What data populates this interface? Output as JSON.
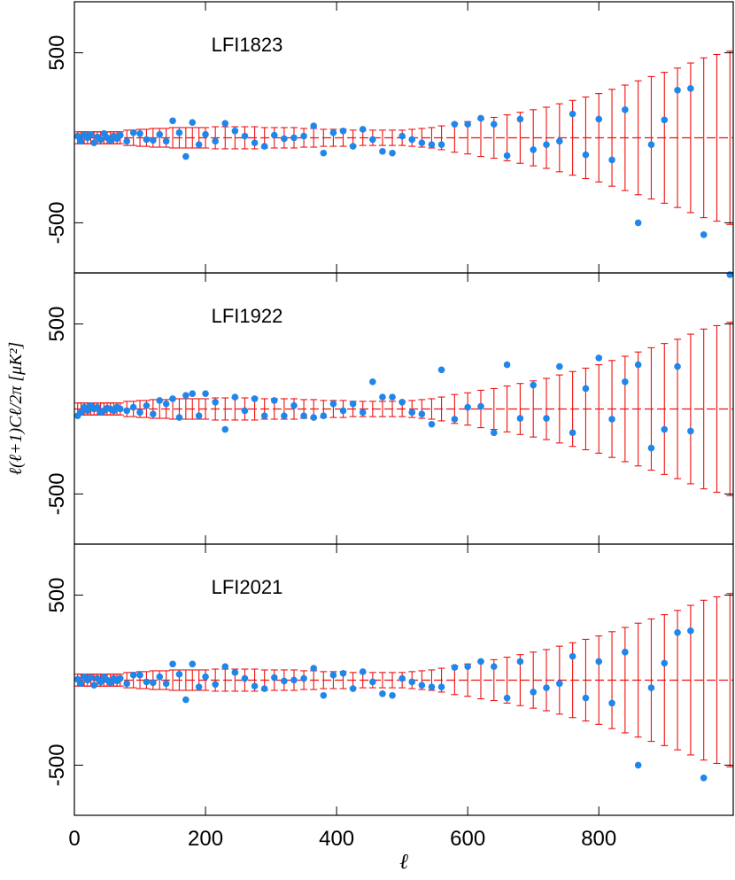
{
  "chart_data": [
    {
      "type": "scatter",
      "label": "LFI1823",
      "xlim": [
        0,
        1005
      ],
      "ylim": [
        -795,
        800
      ],
      "yticks": [
        500,
        -500
      ],
      "color": "#1f86ea",
      "error_color": "#ee1111",
      "x": [
        5,
        10,
        15,
        20,
        25,
        30,
        35,
        40,
        45,
        50,
        55,
        60,
        65,
        70,
        80,
        90,
        100,
        110,
        120,
        130,
        140,
        150,
        160,
        170,
        180,
        190,
        200,
        215,
        230,
        245,
        260,
        275,
        290,
        305,
        320,
        335,
        350,
        365,
        380,
        395,
        410,
        425,
        440,
        455,
        470,
        485,
        500,
        515,
        530,
        545,
        560,
        580,
        600,
        620,
        640,
        660,
        680,
        700,
        720,
        740,
        760,
        780,
        800,
        820,
        840,
        860,
        880,
        900,
        920,
        940,
        960,
        980,
        1000
      ],
      "values": [
        10,
        -20,
        15,
        0,
        20,
        -30,
        5,
        -10,
        25,
        0,
        -15,
        10,
        -5,
        15,
        -20,
        30,
        25,
        -10,
        -15,
        20,
        -20,
        100,
        30,
        -110,
        90,
        -40,
        20,
        -20,
        85,
        40,
        10,
        -30,
        -50,
        15,
        -5,
        0,
        10,
        70,
        -90,
        30,
        40,
        -50,
        50,
        -10,
        -80,
        -90,
        10,
        -10,
        -30,
        -40,
        -40,
        80,
        80,
        115,
        80,
        -105,
        110,
        -70,
        -40,
        -20,
        140,
        -100,
        110,
        -130,
        165,
        -500,
        -40,
        105,
        280,
        290,
        -570,
        null,
        null
      ],
      "errors": [
        35,
        35,
        35,
        35,
        35,
        35,
        35,
        35,
        35,
        35,
        35,
        35,
        35,
        35,
        45,
        45,
        50,
        50,
        55,
        55,
        55,
        60,
        60,
        60,
        60,
        60,
        60,
        65,
        65,
        65,
        65,
        65,
        60,
        60,
        60,
        60,
        55,
        55,
        50,
        50,
        50,
        45,
        45,
        45,
        45,
        45,
        45,
        50,
        55,
        60,
        70,
        85,
        95,
        110,
        120,
        135,
        150,
        165,
        180,
        200,
        220,
        240,
        260,
        285,
        310,
        335,
        360,
        385,
        410,
        440,
        470,
        490,
        510
      ]
    },
    {
      "type": "scatter",
      "label": "LFI1922",
      "ylabel": "ℓ(ℓ+1)Cℓ/2π   [μK²]",
      "xlim": [
        0,
        1005
      ],
      "ylim": [
        -795,
        800
      ],
      "yticks": [
        500,
        -500
      ],
      "color": "#1f86ea",
      "error_color": "#ee1111",
      "x": [
        5,
        10,
        15,
        20,
        25,
        30,
        35,
        40,
        45,
        50,
        55,
        60,
        65,
        70,
        80,
        90,
        100,
        110,
        120,
        130,
        140,
        150,
        160,
        170,
        180,
        190,
        200,
        215,
        230,
        245,
        260,
        275,
        290,
        305,
        320,
        335,
        350,
        365,
        380,
        395,
        410,
        425,
        440,
        455,
        470,
        485,
        500,
        515,
        530,
        545,
        560,
        580,
        600,
        620,
        640,
        660,
        680,
        700,
        720,
        740,
        760,
        780,
        800,
        820,
        840,
        860,
        880,
        900,
        920,
        940,
        960,
        980,
        1000
      ],
      "values": [
        -40,
        -20,
        10,
        -10,
        20,
        0,
        10,
        -20,
        -10,
        5,
        0,
        -10,
        10,
        0,
        -10,
        10,
        -20,
        20,
        -30,
        50,
        30,
        60,
        -50,
        80,
        90,
        -40,
        90,
        40,
        -120,
        70,
        -10,
        60,
        -40,
        50,
        -40,
        20,
        -40,
        -50,
        -40,
        30,
        -10,
        30,
        -20,
        160,
        70,
        70,
        40,
        -20,
        -30,
        -90,
        230,
        -60,
        10,
        15,
        -140,
        260,
        -55,
        140,
        -55,
        250,
        -140,
        120,
        300,
        -60,
        160,
        260,
        -230,
        -120,
        250,
        -130,
        null,
        null,
        790
      ],
      "errors": [
        35,
        35,
        35,
        35,
        35,
        35,
        35,
        35,
        35,
        35,
        35,
        35,
        35,
        35,
        45,
        45,
        50,
        50,
        55,
        55,
        55,
        60,
        60,
        60,
        60,
        60,
        60,
        65,
        65,
        65,
        65,
        65,
        60,
        60,
        60,
        60,
        55,
        55,
        50,
        50,
        50,
        45,
        45,
        45,
        45,
        45,
        45,
        50,
        55,
        60,
        70,
        85,
        95,
        110,
        120,
        135,
        150,
        165,
        180,
        200,
        220,
        240,
        260,
        285,
        310,
        335,
        360,
        385,
        410,
        440,
        470,
        490,
        510
      ]
    },
    {
      "type": "scatter",
      "label": "LFI2021",
      "xlabel": "ℓ",
      "xlim": [
        0,
        1005
      ],
      "ylim": [
        -795,
        800
      ],
      "yticks": [
        500,
        -500
      ],
      "xticks": [
        0,
        200,
        400,
        600,
        800
      ],
      "color": "#1f86ea",
      "error_color": "#ee1111",
      "x": [
        5,
        10,
        15,
        20,
        25,
        30,
        35,
        40,
        45,
        50,
        55,
        60,
        65,
        70,
        80,
        90,
        100,
        110,
        120,
        130,
        140,
        150,
        160,
        170,
        180,
        190,
        200,
        215,
        230,
        245,
        260,
        275,
        290,
        305,
        320,
        335,
        350,
        365,
        380,
        395,
        410,
        425,
        440,
        455,
        470,
        485,
        500,
        515,
        530,
        545,
        560,
        580,
        600,
        620,
        640,
        660,
        680,
        700,
        720,
        740,
        760,
        780,
        800,
        820,
        840,
        860,
        880,
        900,
        920,
        940,
        960,
        980,
        1000
      ],
      "values": [
        5,
        -20,
        20,
        0,
        15,
        -30,
        10,
        -10,
        20,
        0,
        -15,
        10,
        -5,
        10,
        -20,
        30,
        30,
        -10,
        -15,
        20,
        -20,
        95,
        35,
        -115,
        95,
        -40,
        20,
        -25,
        80,
        45,
        10,
        -35,
        -50,
        15,
        -5,
        0,
        10,
        70,
        -90,
        30,
        40,
        -50,
        50,
        -10,
        -80,
        -90,
        10,
        -10,
        -30,
        -40,
        -40,
        75,
        80,
        110,
        80,
        -105,
        110,
        -70,
        -45,
        -20,
        140,
        -105,
        110,
        -135,
        165,
        -500,
        -45,
        100,
        280,
        290,
        -575,
        null,
        null
      ],
      "errors": [
        35,
        35,
        35,
        35,
        35,
        35,
        35,
        35,
        35,
        35,
        35,
        35,
        35,
        35,
        45,
        45,
        50,
        50,
        55,
        55,
        55,
        60,
        60,
        60,
        60,
        60,
        60,
        65,
        65,
        65,
        65,
        65,
        60,
        60,
        60,
        60,
        55,
        55,
        50,
        50,
        50,
        45,
        45,
        45,
        45,
        45,
        45,
        50,
        55,
        60,
        70,
        85,
        95,
        110,
        120,
        135,
        150,
        165,
        180,
        200,
        220,
        240,
        260,
        285,
        310,
        335,
        360,
        385,
        410,
        440,
        470,
        490,
        510
      ]
    }
  ]
}
